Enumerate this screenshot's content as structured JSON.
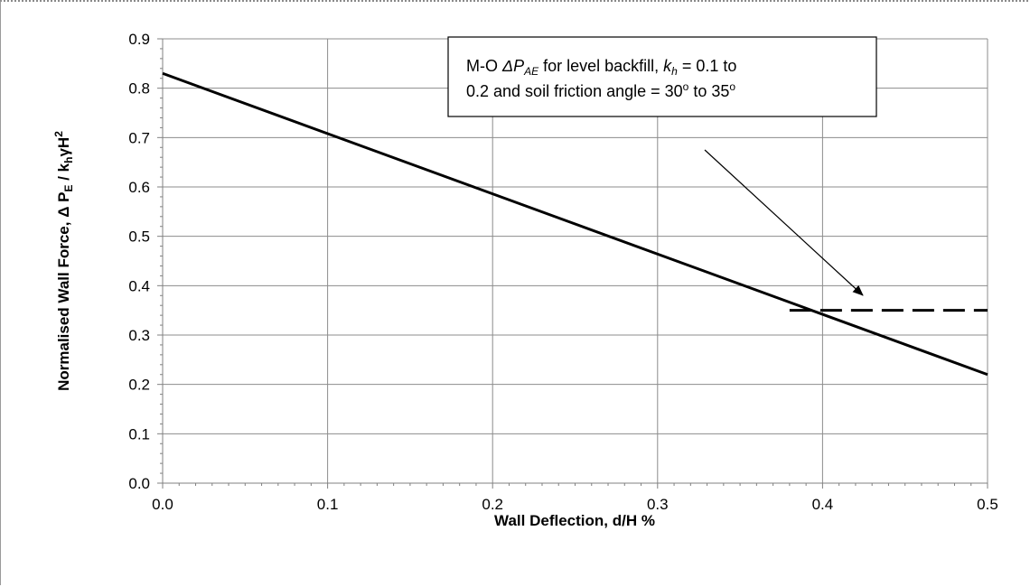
{
  "chart_data": {
    "type": "line",
    "xlabel": "Wall Deflection, d/H %",
    "ylabel": "Normalised Wall Force, Δ P_E / k_hγH²",
    "xlim": [
      0,
      0.5
    ],
    "ylim": [
      0,
      0.9
    ],
    "xticks": [
      "0.0",
      "0.1",
      "0.2",
      "0.3",
      "0.4",
      "0.5"
    ],
    "yticks": [
      "0.0",
      "0.1",
      "0.2",
      "0.3",
      "0.4",
      "0.5",
      "0.6",
      "0.7",
      "0.8",
      "0.9"
    ],
    "grid": true,
    "series": [
      {
        "style": "solid",
        "color": "#000000",
        "x": [
          0.0,
          0.5
        ],
        "y": [
          0.83,
          0.22
        ]
      },
      {
        "style": "dashed",
        "color": "#000000",
        "x": [
          0.38,
          0.5
        ],
        "y": [
          0.35,
          0.35
        ]
      }
    ],
    "annotation": {
      "line1": "M-O ΔP_AE for level backfill, k_h = 0.1 to",
      "line2": "0.2 and soil friction angle = 30° to 35°"
    }
  }
}
